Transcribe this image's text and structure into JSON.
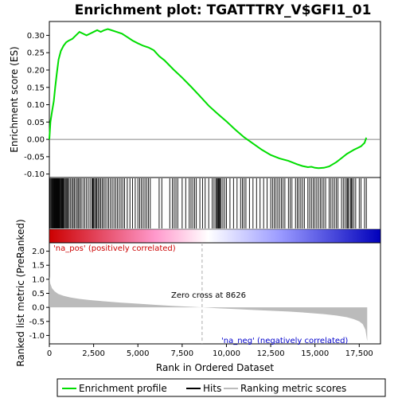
{
  "chart_data": {
    "type": "line",
    "title": "Enrichment plot: TGATTTRY_V$GFI1_01",
    "top_panel": {
      "ylabel": "Enrichment score (ES)",
      "ylim": [
        -0.11,
        0.34
      ],
      "yticks": [
        -0.1,
        -0.05,
        0.0,
        0.05,
        0.1,
        0.15,
        0.2,
        0.25,
        0.3
      ],
      "ytick_labels": [
        "-0.10",
        "-0.05",
        "0.00",
        "0.05",
        "0.10",
        "0.15",
        "0.20",
        "0.25",
        "0.30"
      ],
      "series": [
        {
          "name": "Enrichment profile",
          "color": "#00dd00",
          "x": [
            0,
            60,
            150,
            250,
            330,
            420,
            520,
            650,
            800,
            950,
            1100,
            1300,
            1500,
            1700,
            1900,
            2100,
            2300,
            2500,
            2700,
            2900,
            3100,
            3300,
            3500,
            3800,
            4100,
            4400,
            4700,
            5000,
            5300,
            5600,
            5900,
            6200,
            6500,
            7000,
            7500,
            8000,
            8500,
            9000,
            9500,
            10000,
            10500,
            11000,
            11500,
            12000,
            12500,
            13000,
            13500,
            14000,
            14300,
            14600,
            14800,
            15000,
            15200,
            15500,
            15800,
            16000,
            16200,
            16400,
            16600,
            16800,
            17000,
            17200,
            17400,
            17600,
            17800,
            17900
          ],
          "y": [
            0.0,
            0.05,
            0.08,
            0.11,
            0.15,
            0.19,
            0.23,
            0.255,
            0.27,
            0.28,
            0.285,
            0.29,
            0.3,
            0.31,
            0.305,
            0.3,
            0.305,
            0.31,
            0.315,
            0.31,
            0.315,
            0.318,
            0.315,
            0.31,
            0.305,
            0.295,
            0.285,
            0.277,
            0.27,
            0.265,
            0.257,
            0.24,
            0.228,
            0.202,
            0.178,
            0.152,
            0.125,
            0.097,
            0.074,
            0.052,
            0.028,
            0.006,
            -0.012,
            -0.03,
            -0.045,
            -0.055,
            -0.062,
            -0.072,
            -0.077,
            -0.08,
            -0.079,
            -0.082,
            -0.083,
            -0.082,
            -0.078,
            -0.072,
            -0.066,
            -0.058,
            -0.05,
            -0.042,
            -0.036,
            -0.03,
            -0.025,
            -0.02,
            -0.01,
            0.005
          ]
        }
      ],
      "hits": [
        30,
        80,
        120,
        160,
        200,
        230,
        270,
        300,
        330,
        360,
        390,
        420,
        450,
        480,
        510,
        540,
        570,
        600,
        640,
        680,
        720,
        760,
        800,
        840,
        900,
        950,
        1000,
        1050,
        1120,
        1200,
        1280,
        1350,
        1420,
        1500,
        1580,
        1650,
        1720,
        1800,
        1900,
        2000,
        2100,
        2200,
        2300,
        2400,
        2450,
        2500,
        2560,
        2620,
        2680,
        2750,
        2820,
        2900,
        2980,
        3060,
        3150,
        3250,
        3350,
        3450,
        3550,
        3650,
        3750,
        3850,
        3950,
        4050,
        4150,
        4250,
        4400,
        4550,
        4700,
        4850,
        5000,
        5100,
        5200,
        5300,
        5400,
        5500,
        5600,
        5700,
        6200,
        6350,
        6800,
        6950,
        7050,
        7150,
        7250,
        7500,
        7700,
        7900,
        8000,
        8100,
        8200,
        8300,
        8500,
        8650,
        8800,
        9000,
        9200,
        9300,
        9400,
        9450,
        9500,
        9550,
        9600,
        9650,
        9700,
        9800,
        9900,
        10000,
        10200,
        10400,
        10600,
        10800,
        10900,
        11000,
        11100,
        11300,
        11500,
        11700,
        11900,
        12100,
        12300,
        12500,
        12600,
        12700,
        12800,
        12900,
        13000,
        13100,
        13200,
        13300,
        13500,
        13600,
        13700,
        13900,
        14000,
        14100,
        14200,
        14300,
        14400,
        14600,
        14700,
        14800,
        14900,
        15000,
        15100,
        15200,
        15300,
        15400,
        15500,
        15600,
        15800,
        15900,
        16000,
        16100,
        16200,
        16300,
        16500,
        16600,
        16700,
        16800,
        16850,
        16900,
        17000,
        17050,
        17100,
        17200,
        17300,
        17500,
        17600,
        17800,
        17900
      ]
    },
    "middle_panel": {
      "label_pos": "'na_pos' (positively correlated)",
      "label_neg": "'na_neg' (negatively correlated)",
      "gradient_colors": [
        "#cc0000",
        "#ff99cc",
        "#ffffff",
        "#9999ff",
        "#0000bb"
      ]
    },
    "bottom_panel": {
      "ylabel": "Ranked list metric (PreRanked)",
      "xlabel": "Rank in Ordered Dataset",
      "ylim": [
        -1.3,
        2.3
      ],
      "yticks": [
        -1.0,
        -0.5,
        0.0,
        0.5,
        1.0,
        1.5,
        2.0
      ],
      "ytick_labels": [
        "-1.0",
        "-0.5",
        "0.0",
        "0.5",
        "1.0",
        "1.5",
        "2.0"
      ],
      "xlim": [
        0,
        18700
      ],
      "xticks": [
        0,
        2500,
        5000,
        7500,
        10000,
        12500,
        15000,
        17500
      ],
      "xtick_labels": [
        "0",
        "2,500",
        "5,000",
        "7,500",
        "10,000",
        "12,500",
        "15,000",
        "17,500"
      ],
      "zero_cross_label": "Zero cross at 8626",
      "zero_cross_value": 8626,
      "metric": {
        "x": [
          0,
          50,
          150,
          300,
          500,
          800,
          1200,
          1700,
          2300,
          3000,
          4000,
          5000,
          6000,
          7000,
          8000,
          8626,
          9500,
          10500,
          11500,
          12500,
          13500,
          14500,
          15500,
          16200,
          16800,
          17200,
          17500,
          17700,
          17850,
          17950
        ],
        "y": [
          1.1,
          0.85,
          0.68,
          0.57,
          0.48,
          0.41,
          0.35,
          0.3,
          0.26,
          0.22,
          0.17,
          0.13,
          0.09,
          0.05,
          0.02,
          0.0,
          -0.03,
          -0.06,
          -0.09,
          -0.12,
          -0.15,
          -0.19,
          -0.24,
          -0.29,
          -0.35,
          -0.42,
          -0.5,
          -0.6,
          -0.8,
          -1.2
        ]
      }
    },
    "legend": {
      "items": [
        {
          "label": "Enrichment profile",
          "color": "#00dd00"
        },
        {
          "label": "Hits",
          "color": "#000000"
        },
        {
          "label": "Ranking metric scores",
          "color": "#bbbbbb"
        }
      ]
    }
  }
}
